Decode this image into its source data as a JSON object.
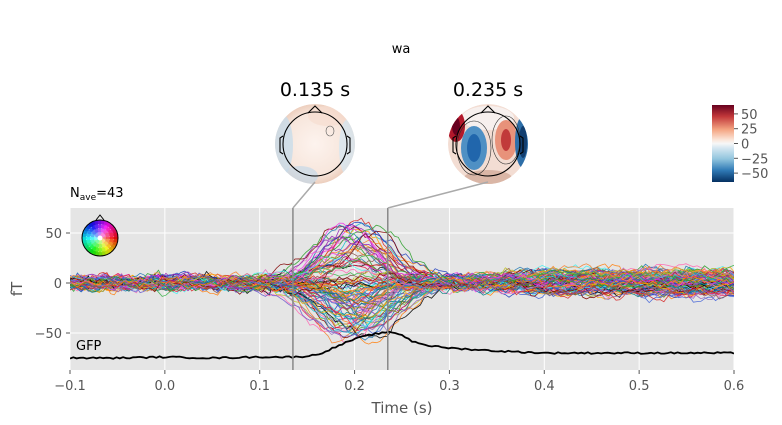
{
  "figure": {
    "title": "wa",
    "n_ave_prefix": "N",
    "n_ave_sub": "ave",
    "n_ave_value": "=43",
    "gfp_label": "GFP"
  },
  "chart_data": {
    "type": "line",
    "title": "wa",
    "xlabel": "Time (s)",
    "ylabel": "fT",
    "xlim": [
      -0.1,
      0.6
    ],
    "ylim": [
      -87,
      75
    ],
    "grid": true,
    "x_ticks": [
      -0.1,
      0.0,
      0.1,
      0.2,
      0.3,
      0.4,
      0.5,
      0.6
    ],
    "x_tick_labels": [
      "−0.1",
      "0.0",
      "0.1",
      "0.2",
      "0.3",
      "0.4",
      "0.5",
      "0.6"
    ],
    "y_ticks": [
      50,
      0,
      -50
    ],
    "y_tick_labels": [
      "50",
      "0",
      "−50"
    ],
    "marker_times": [
      0.135,
      0.235
    ],
    "topomap_titles": [
      "0.135 s",
      "0.235 s"
    ],
    "n_channels_approx": 102,
    "gfp_series": {
      "name": "GFP",
      "x": [
        -0.1,
        -0.05,
        0.0,
        0.05,
        0.1,
        0.12,
        0.14,
        0.16,
        0.17,
        0.18,
        0.2,
        0.22,
        0.24,
        0.25,
        0.26,
        0.28,
        0.3,
        0.35,
        0.4,
        0.45,
        0.5,
        0.55,
        0.6
      ],
      "values": [
        -75,
        -75,
        -74,
        -75,
        -74,
        -74,
        -74,
        -72,
        -68,
        -64,
        -56,
        -51,
        -49,
        -52,
        -58,
        -63,
        -65,
        -68,
        -70,
        -70,
        -70,
        -70,
        -70
      ]
    },
    "colorbar": {
      "ticks": [
        50,
        25,
        0,
        -25,
        -50
      ],
      "tick_labels": [
        "50",
        "25",
        "0",
        "−25",
        "−50"
      ],
      "range": [
        -65,
        65
      ],
      "colormap": "RdBu_r"
    }
  }
}
